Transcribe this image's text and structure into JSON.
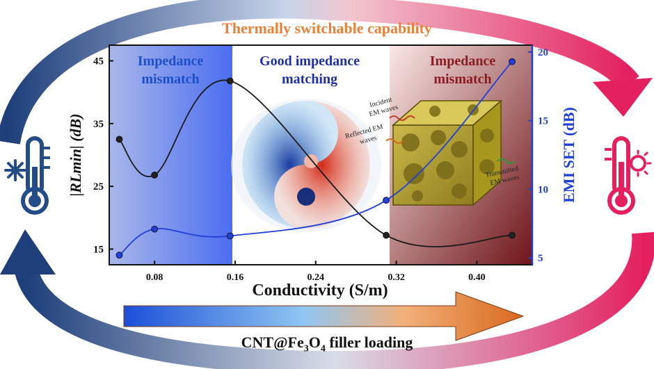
{
  "header": {
    "title": "Thermally switchable capability"
  },
  "footer": {
    "label_prefix": "CNT@Fe",
    "label_sub1": "3",
    "label_mid": "O",
    "label_sub2": "4",
    "label_suffix": " filler loading"
  },
  "regions": {
    "left": [
      "Impedance",
      "mismatch"
    ],
    "middle": [
      "Good impedance",
      "matching"
    ],
    "right": [
      "Impedance",
      "mismatch"
    ]
  },
  "annotations": {
    "incident": [
      "Incident",
      "EM waves"
    ],
    "reflected": [
      "Reflected EM",
      "waves"
    ],
    "transmitted": [
      "Transmitted",
      "EM waves"
    ]
  },
  "chart_data": {
    "type": "line",
    "xlabel": "Conductivity (S/m)",
    "ylabel_left": "|RLmin| (dB)",
    "ylabel_right": "EMI SET (dB)",
    "xlim": [
      0.035,
      0.455
    ],
    "xticks": [
      0.08,
      0.16,
      0.24,
      0.32,
      0.4
    ],
    "xtick_labels": [
      "0.08",
      "0.16",
      "0.24",
      "0.32",
      "0.40"
    ],
    "ylim_left": [
      12.5,
      47.5
    ],
    "yticks_left": [
      15,
      25,
      35,
      45
    ],
    "ylim_right": [
      4.5,
      20.5
    ],
    "yticks_right": [
      5,
      10,
      15,
      20
    ],
    "series": [
      {
        "axis": "left",
        "color": "#1a1a1a",
        "x": [
          0.045,
          0.08,
          0.155,
          0.31,
          0.435
        ],
        "y": [
          32.5,
          26.8,
          41.8,
          17.2,
          17.2
        ]
      },
      {
        "axis": "right",
        "color": "#1f3fd6",
        "x": [
          0.045,
          0.08,
          0.155,
          0.31,
          0.435
        ],
        "y": [
          5.2,
          7.1,
          6.6,
          9.2,
          19.3
        ]
      }
    ]
  },
  "colors": {
    "title": "#e8823a",
    "left_arc": "#2a4f8f",
    "right_arc": "#e0306a",
    "left_axis": "#111111",
    "right_axis": "#1f3fd6"
  },
  "icons": {
    "left": "cold-thermometer-icon",
    "right": "hot-thermometer-icon",
    "center": "yin-yang-icon",
    "material": "foam-cube-icon"
  }
}
